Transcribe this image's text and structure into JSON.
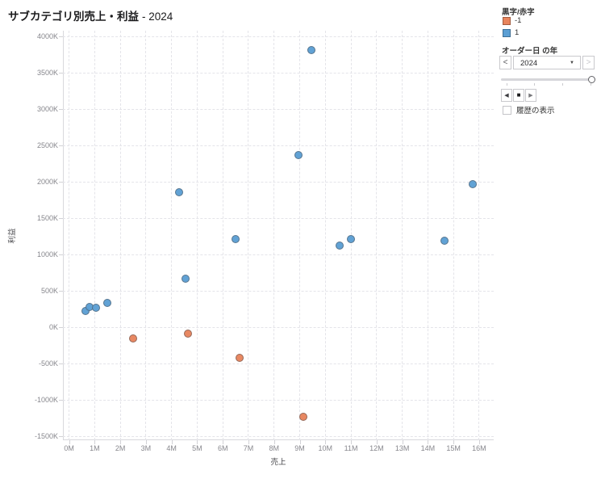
{
  "title": {
    "main": "サブカテゴリ別売上・利益",
    "suffix": "- 2024"
  },
  "chart_data": {
    "type": "scatter",
    "title": "サブカテゴリ別売上・利益 - 2024",
    "xlabel": "売上",
    "ylabel": "利益",
    "x_unit": "millions (M)",
    "y_unit": "thousands (K)",
    "xlim_M": [
      -0.25,
      16.6
    ],
    "ylim_K": [
      -1550,
      4075
    ],
    "grid": "dashed, both axes",
    "legend_position": "top-right",
    "x_ticks": [
      "0M",
      "1M",
      "2M",
      "3M",
      "4M",
      "5M",
      "6M",
      "7M",
      "8M",
      "9M",
      "10M",
      "11M",
      "12M",
      "13M",
      "14M",
      "15M",
      "16M"
    ],
    "y_ticks": [
      "4000K",
      "3500K",
      "3000K",
      "2500K",
      "2000K",
      "1500K",
      "1000K",
      "500K",
      "0K",
      "-500K",
      "-1000K",
      "-1500K"
    ],
    "series": [
      {
        "name": "-1",
        "color": "#E8845C",
        "points_M_K": [
          [
            2.55,
            -175
          ],
          [
            4.7,
            -110
          ],
          [
            6.7,
            -440
          ],
          [
            9.2,
            -1250
          ]
        ]
      },
      {
        "name": "1",
        "color": "#5B9FD4",
        "points_M_K": [
          [
            0.7,
            210
          ],
          [
            0.85,
            265
          ],
          [
            1.1,
            245
          ],
          [
            1.55,
            320
          ],
          [
            4.35,
            1835
          ],
          [
            4.6,
            645
          ],
          [
            6.55,
            1190
          ],
          [
            9.0,
            2355
          ],
          [
            9.5,
            3790
          ],
          [
            10.6,
            1105
          ],
          [
            11.05,
            1190
          ],
          [
            14.7,
            1175
          ],
          [
            15.8,
            1945
          ]
        ]
      }
    ]
  },
  "legend": {
    "title": "黒字/赤字",
    "items": [
      {
        "label": "-1",
        "color": "#E8845C"
      },
      {
        "label": "1",
        "color": "#5B9FD4"
      }
    ]
  },
  "filter": {
    "title": "オーダー日 の年",
    "prev_label": "<",
    "value": "2024",
    "caret": "▼",
    "next_label": ">",
    "slider": {
      "tick_count": 4,
      "handle_at": "right"
    },
    "playback": {
      "back": "◀",
      "stop": "■",
      "forward": "▶"
    },
    "history": {
      "label": "履歴の表示",
      "checked": false
    }
  }
}
